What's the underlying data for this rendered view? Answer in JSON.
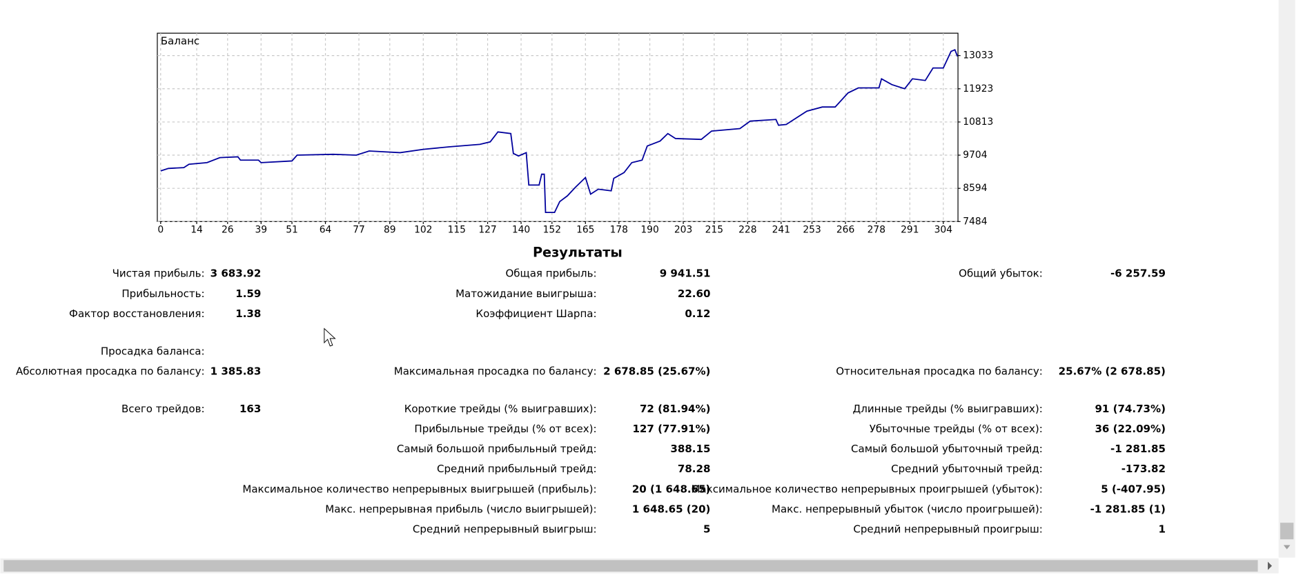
{
  "chart_data": {
    "type": "line",
    "x": [
      0,
      3,
      9,
      11,
      18,
      23,
      30,
      31,
      38,
      39,
      51,
      53,
      67,
      76,
      81,
      93,
      102,
      112,
      124,
      128,
      131,
      136,
      137,
      139,
      142,
      143,
      147,
      148,
      149,
      149.5,
      153,
      155,
      158,
      161,
      165,
      167,
      170,
      175,
      176,
      180,
      183,
      187,
      189,
      194,
      197,
      200,
      210,
      214,
      225,
      229,
      239,
      240,
      243,
      251,
      257,
      262,
      267,
      271,
      279,
      280,
      284,
      289,
      292,
      297,
      300,
      304,
      307,
      308.5,
      309.5
    ],
    "series": [
      {
        "name": "Баланс",
        "color": "#00009c",
        "values": [
          9177,
          9260,
          9287,
          9399,
          9454,
          9621,
          9648,
          9537,
          9537,
          9454,
          9510,
          9704,
          9732,
          9704,
          9843,
          9787,
          9898,
          9981,
          10065,
          10148,
          10481,
          10426,
          9760,
          9676,
          9787,
          8705,
          8705,
          9066,
          9066,
          7789,
          7789,
          8150,
          8344,
          8622,
          8955,
          8400,
          8566,
          8511,
          8927,
          9121,
          9454,
          9537,
          10009,
          10176,
          10426,
          10259,
          10231,
          10509,
          10592,
          10842,
          10897,
          10703,
          10731,
          11175,
          11314,
          11314,
          11785,
          11952,
          11952,
          12257,
          12063,
          11924,
          12257,
          12201,
          12618,
          12618,
          13172,
          13228,
          13006
        ]
      }
    ],
    "xlim": [
      -1.3,
      309.7
    ],
    "xticks": [
      0,
      14,
      26,
      39,
      51,
      64,
      77,
      89,
      102,
      115,
      127,
      140,
      152,
      165,
      178,
      190,
      203,
      215,
      228,
      241,
      253,
      266,
      278,
      291,
      304
    ],
    "ylim": [
      7484,
      13782
    ],
    "yticks": [
      7484,
      8594,
      9704,
      10813,
      11923,
      13033
    ],
    "grid": true
  },
  "results": {
    "title": "Результаты",
    "sections": [
      [
        [
          {
            "label": "Чистая прибыль:",
            "value": "3 683.92"
          },
          {
            "label": "Общая прибыль:",
            "value": "9 941.51"
          },
          {
            "label": "Общий убыток:",
            "value": "-6 257.59"
          }
        ],
        [
          {
            "label": "Прибыльность:",
            "value": "1.59"
          },
          {
            "label": "Матожидание выигрыша:",
            "value": "22.60"
          },
          null
        ],
        [
          {
            "label": "Фактор восстановления:",
            "value": "1.38"
          },
          {
            "label": "Коэффициент Шарпа:",
            "value": "0.12"
          },
          null
        ]
      ],
      [
        [
          {
            "label": "Просадка баланса:"
          },
          null,
          null
        ],
        [
          {
            "label": "Абсолютная просадка по балансу:",
            "value": "1 385.83"
          },
          {
            "label": "Максимальная просадка по балансу:",
            "value": "2 678.85 (25.67%)"
          },
          {
            "label": "Относительная просадка по балансу:",
            "value": "25.67% (2 678.85)"
          }
        ]
      ],
      [
        [
          {
            "label": "Всего трейдов:",
            "value": "163"
          },
          {
            "label": "Короткие трейды (% выигравших):",
            "value": "72 (81.94%)"
          },
          {
            "label": "Длинные трейды (% выигравших):",
            "value": "91 (74.73%)"
          }
        ],
        [
          null,
          {
            "label": "Прибыльные трейды (% от всех):",
            "value": "127 (77.91%)"
          },
          {
            "label": "Убыточные трейды (% от всех):",
            "value": "36 (22.09%)"
          }
        ],
        [
          null,
          {
            "label": "Самый большой прибыльный трейд:",
            "value": "388.15"
          },
          {
            "label": "Самый большой убыточный трейд:",
            "value": "-1 281.85"
          }
        ],
        [
          null,
          {
            "label": "Средний прибыльный трейд:",
            "value": "78.28"
          },
          {
            "label": "Средний убыточный трейд:",
            "value": "-173.82"
          }
        ],
        [
          null,
          {
            "label": "Максимальное количество непрерывных выигрышей (прибыль):",
            "value": "20 (1 648.65)"
          },
          {
            "label": "Максимальное количество непрерывных проигрышей (убыток):",
            "value": "5 (-407.95)"
          }
        ],
        [
          null,
          {
            "label": "Макс. непрерывная прибыль (число выигрышей):",
            "value": "1 648.65 (20)"
          },
          {
            "label": "Макс. непрерывный убыток (число проигрышей):",
            "value": "-1 281.85 (1)"
          }
        ],
        [
          null,
          {
            "label": "Средний непрерывный выигрыш:",
            "value": "5"
          },
          {
            "label": "Средний непрерывный проигрыш:",
            "value": "1"
          }
        ]
      ]
    ]
  }
}
